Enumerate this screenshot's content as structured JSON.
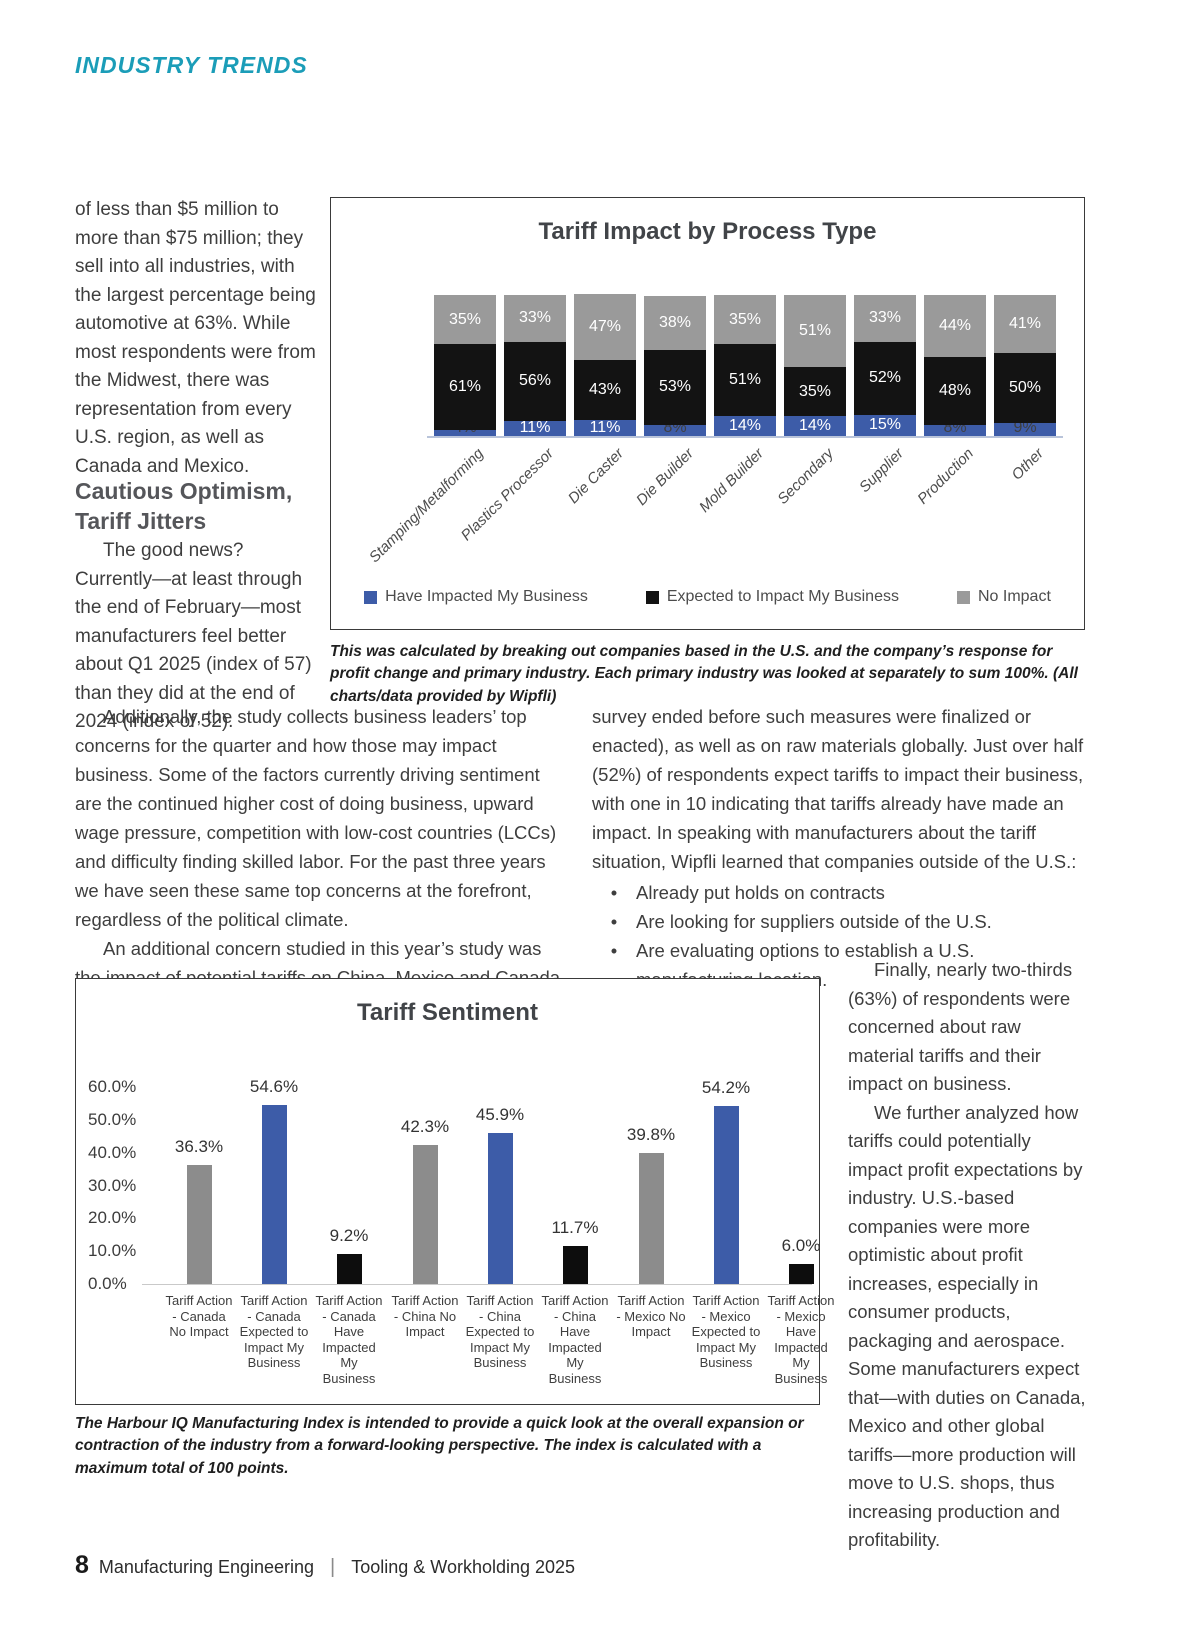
{
  "header": {
    "section_label": "INDUSTRY TRENDS"
  },
  "left_column": {
    "para1": "of less than $5 million to more than $75 million; they sell into all industries, with the largest percentage being automotive at 63%. While most respondents were from the Midwest, there was representation from every U.S. region, as well as Canada and Mexico.",
    "heading": "Cautious Optimism, Tariff Jitters",
    "para2": "The good news? Currently—at least through the end of February—most manufacturers feel better about Q1 2025 (index of 57) than they did at the end of 2024 (index of 52)."
  },
  "body": {
    "col1_para1": "Additionally, the study collects business leaders’ top concerns for the quarter and how those may impact business. Some of the factors currently driving sentiment are the continued higher cost of doing business, upward wage pressure, competition with low-cost countries (LCCs) and difficulty finding skilled labor. For the past three years we have seen these same top concerns at the forefront, regardless of the political climate.",
    "col1_para2": "An additional concern studied in this year’s study was the impact of potential tariffs on China, Mexico and Canada (the",
    "col2_para1": "survey ended before such measures were finalized or enacted), as well as on raw materials globally. Just over half (52%) of respondents expect tariffs to impact their business, with one in 10 indicating that tariffs already have made an impact. In speaking with manufacturers about the tariff situation, Wipfli learned that companies outside of the U.S.:",
    "bullet_glyph": "•",
    "bullets": [
      "Already put holds on contracts",
      "Are looking for suppliers outside of the U.S.",
      "Are evaluating options to establish a U.S. manufacturing location."
    ],
    "right_para1": "Finally, nearly two-thirds (63%) of respondents were concerned about raw material tariffs and their impact on business.",
    "right_para2": "We further analyzed how tariffs could potentially impact profit expectations by industry. U.S.-based companies were more optimistic about profit increases, especially in consumer products, packaging and aerospace. Some manufacturers expect that—with duties on Canada, Mexico and other global tariffs—more production will move to U.S. shops, thus increasing production and profitability."
  },
  "chart_data": [
    {
      "type": "bar",
      "variant": "stacked-100",
      "title": "Tariff Impact by Process Type",
      "categories": [
        "Stamping/Metalforming",
        "Plastics Processor",
        "Die Caster",
        "Die Builder",
        "Mold Builder",
        "Secondary",
        "Supplier",
        "Production",
        "Other"
      ],
      "series": [
        {
          "name": "Have Impacted My Business",
          "color": "#3d5ca8",
          "values": [
            4,
            11,
            11,
            8,
            14,
            14,
            15,
            8,
            9
          ]
        },
        {
          "name": "Expected to Impact My Business",
          "color": "#131313",
          "values": [
            61,
            56,
            43,
            53,
            51,
            35,
            52,
            48,
            50
          ]
        },
        {
          "name": "No Impact",
          "color": "#9a9a9a",
          "values": [
            35,
            33,
            47,
            38,
            35,
            51,
            33,
            44,
            41
          ]
        }
      ],
      "value_suffix": "%",
      "legend_position": "bottom",
      "grid": false,
      "ylim": [
        0,
        100
      ]
    },
    {
      "type": "bar",
      "title": "Tariff Sentiment",
      "categories": [
        "Tariff Action - Canada No Impact",
        "Tariff Action - Canada Expected to Impact My Business",
        "Tariff Action - Canada Have Impacted My Business",
        "Tariff Action - China No Impact",
        "Tariff Action - China Expected to Impact My Business",
        "Tariff Action - China Have Impacted My Business",
        "Tariff Action - Mexico No Impact",
        "Tariff Action - Mexico Expected to Impact My Business",
        "Tariff Action - Mexico Have Impacted My Business"
      ],
      "values": [
        36.3,
        54.6,
        9.2,
        42.3,
        45.9,
        11.7,
        39.8,
        54.2,
        6.0
      ],
      "value_labels": [
        "36.3%",
        "54.6%",
        "9.2%",
        "42.3%",
        "45.9%",
        "11.7%",
        "39.8%",
        "54.2%",
        "6.0%"
      ],
      "bar_colors": [
        "#8c8c8c",
        "#3d5ca8",
        "#0d0d0d",
        "#8c8c8c",
        "#3d5ca8",
        "#0d0d0d",
        "#8c8c8c",
        "#3d5ca8",
        "#0d0d0d"
      ],
      "ylim": [
        0,
        60
      ],
      "ytick_labels": [
        "60.0%",
        "50.0%",
        "40.0%",
        "30.0%",
        "20.0%",
        "10.0%",
        "0.0%"
      ],
      "grid": false,
      "legend_position": "none"
    }
  ],
  "captions": {
    "chart1": "This was calculated by breaking out companies based in the U.S. and the company’s response for profit change and primary industry. Each primary industry was looked at separately to sum 100%. (All charts/data provided by Wipfli)",
    "chart2": "The Harbour IQ Manufacturing Index is intended to provide a quick look at the overall expansion or contraction of the industry from a forward-looking perspective. The index is calculated with a maximum total of 100 points."
  },
  "footer": {
    "page_number": "8",
    "magazine": "Manufacturing Engineering",
    "separator": "|",
    "issue": "Tooling & Workholding 2025"
  },
  "colors": {
    "accent_teal": "#1b9db8",
    "chart_blue": "#3d5ca8",
    "chart_black": "#131313",
    "chart_gray": "#9a9a9a"
  }
}
